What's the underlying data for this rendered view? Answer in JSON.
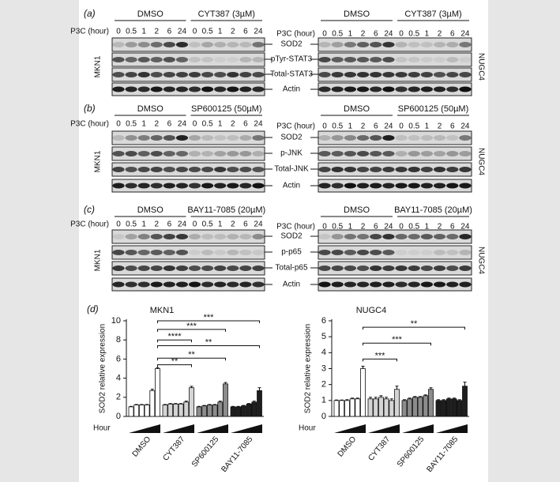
{
  "panels": [
    {
      "label": "(a)",
      "groups": [
        "DMSO",
        "CYT387 (3µM)"
      ],
      "lane_title": "P3C (hour)",
      "lanes": [
        "0",
        "0.5",
        "1",
        "2",
        "6",
        "24"
      ],
      "rows": [
        "SOD2",
        "pTyr-STAT3",
        "Total-STAT3",
        "Actin"
      ],
      "left_cell": "MKN1",
      "right_cell": "NUGC4"
    },
    {
      "label": "(b)",
      "groups": [
        "DMSO",
        "SP600125 (50µM)"
      ],
      "lane_title": "P3C (hour)",
      "lanes": [
        "0",
        "0.5",
        "1",
        "2",
        "6",
        "24"
      ],
      "rows": [
        "SOD2",
        "p-JNK",
        "Total-JNK",
        "Actin"
      ],
      "left_cell": "MKN1",
      "right_cell": "NUGC4"
    },
    {
      "label": "(c)",
      "groups": [
        "DMSO",
        "BAY11-7085 (20µM)"
      ],
      "lane_title": "P3C (hour)",
      "lanes": [
        "0",
        "0.5",
        "1",
        "2",
        "6",
        "24"
      ],
      "rows": [
        "SOD2",
        "p-p65",
        "Total-p65",
        "Actin"
      ],
      "left_cell": "MKN1",
      "right_cell": "NUGC4"
    }
  ],
  "chart_panel_label": "(d)",
  "hour_label": "Hour",
  "chart_data": [
    {
      "type": "bar",
      "title": "MKN1",
      "ylabel": "SOD2 relative expression",
      "ylim": [
        0,
        10
      ],
      "yticks": [
        0,
        2,
        4,
        6,
        8,
        10
      ],
      "series": [
        {
          "name": "DMSO",
          "color": "#ffffff",
          "values": [
            1.0,
            1.2,
            1.2,
            1.2,
            2.7,
            5.0
          ],
          "errors": [
            0.05,
            0.05,
            0.05,
            0.05,
            0.15,
            0.1
          ]
        },
        {
          "name": "CYT387",
          "color": "#d4d4d4",
          "values": [
            1.2,
            1.3,
            1.3,
            1.3,
            1.5,
            3.0
          ],
          "errors": [
            0.05,
            0.05,
            0.05,
            0.05,
            0.1,
            0.15
          ]
        },
        {
          "name": "SP600125",
          "color": "#8c8c8c",
          "values": [
            1.0,
            1.1,
            1.2,
            1.2,
            1.5,
            3.4
          ],
          "errors": [
            0.05,
            0.05,
            0.05,
            0.05,
            0.1,
            0.15
          ]
        },
        {
          "name": "BAY11-7085",
          "color": "#1e1e1e",
          "values": [
            1.0,
            1.0,
            1.1,
            1.3,
            1.5,
            2.7
          ],
          "errors": [
            0.05,
            0.05,
            0.05,
            0.05,
            0.1,
            0.3
          ]
        }
      ],
      "annotations": [
        "***",
        "***",
        "****",
        "**",
        "**",
        "**"
      ]
    },
    {
      "type": "bar",
      "title": "NUGC4",
      "ylabel": "SOD2 relative expression",
      "ylim": [
        0,
        6
      ],
      "yticks": [
        0,
        1,
        2,
        3,
        4,
        5,
        6
      ],
      "series": [
        {
          "name": "DMSO",
          "color": "#ffffff",
          "values": [
            1.0,
            1.0,
            1.0,
            1.1,
            1.1,
            3.0
          ],
          "errors": [
            0.03,
            0.03,
            0.05,
            0.05,
            0.05,
            0.15
          ]
        },
        {
          "name": "CYT387",
          "color": "#d4d4d4",
          "values": [
            1.1,
            1.1,
            1.2,
            1.1,
            1.0,
            1.7
          ],
          "errors": [
            0.1,
            0.1,
            0.1,
            0.1,
            0.1,
            0.2
          ]
        },
        {
          "name": "SP600125",
          "color": "#8c8c8c",
          "values": [
            1.0,
            1.1,
            1.2,
            1.2,
            1.3,
            1.7
          ],
          "errors": [
            0.05,
            0.05,
            0.05,
            0.05,
            0.05,
            0.1
          ]
        },
        {
          "name": "BAY11-7085",
          "color": "#1e1e1e",
          "values": [
            1.0,
            1.0,
            1.1,
            1.1,
            1.0,
            1.9
          ],
          "errors": [
            0.05,
            0.05,
            0.05,
            0.05,
            0.05,
            0.25
          ]
        }
      ],
      "annotations": [
        "**",
        "***",
        "***"
      ]
    }
  ]
}
